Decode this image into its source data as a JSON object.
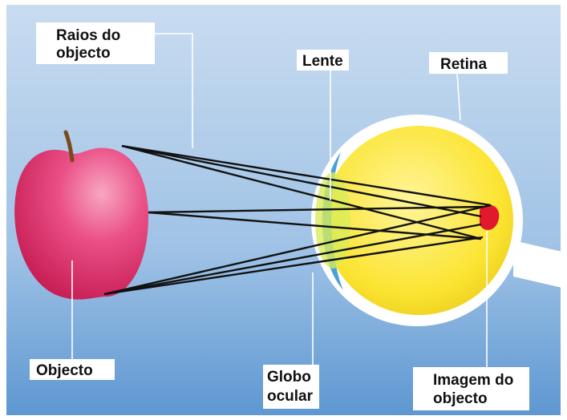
{
  "labels": {
    "rays": [
      "Raios do",
      "objecto"
    ],
    "lens": [
      "Lente"
    ],
    "retina": [
      "Retina"
    ],
    "object": [
      "Objecto"
    ],
    "eyeball": [
      "Globo",
      "ocular"
    ],
    "image": [
      "Imagem do",
      "objecto"
    ]
  }
}
